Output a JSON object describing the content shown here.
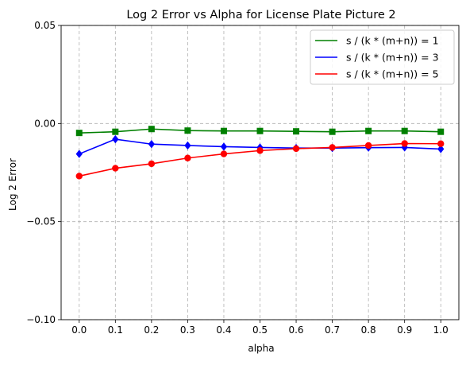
{
  "chart_data": {
    "type": "line",
    "title": "Log 2 Error vs Alpha for License Plate Picture 2",
    "xlabel": "alpha",
    "ylabel": "Log 2 Error",
    "x": [
      0.0,
      0.1,
      0.2,
      0.3,
      0.4,
      0.5,
      0.6,
      0.7,
      0.8,
      0.9,
      1.0
    ],
    "xticks": [
      "0.0",
      "0.1",
      "0.2",
      "0.3",
      "0.4",
      "0.5",
      "0.6",
      "0.7",
      "0.8",
      "0.9",
      "1.0"
    ],
    "yticks": [
      "0.05",
      "0.00",
      "−0.05",
      "−0.10"
    ],
    "ytick_values": [
      0.05,
      0.0,
      -0.05,
      -0.1
    ],
    "xlim": [
      -0.05,
      1.05
    ],
    "ylim": [
      -0.1,
      0.05
    ],
    "grid": true,
    "legend_position": "top-right",
    "series": [
      {
        "name": "s / (k * (m+n)) = 1",
        "color": "#008000",
        "marker": "square",
        "values": [
          -0.0048,
          -0.0042,
          -0.0028,
          -0.0036,
          -0.0038,
          -0.0038,
          -0.004,
          -0.0042,
          -0.0038,
          -0.0038,
          -0.0042
        ]
      },
      {
        "name": "s / (k * (m+n)) = 3",
        "color": "#0000ff",
        "marker": "diamond",
        "values": [
          -0.0155,
          -0.008,
          -0.0105,
          -0.0112,
          -0.0118,
          -0.0122,
          -0.0125,
          -0.0125,
          -0.0123,
          -0.0122,
          -0.013
        ]
      },
      {
        "name": "s / (k * (m+n)) = 5",
        "color": "#ff0000",
        "marker": "circle",
        "values": [
          -0.0268,
          -0.0228,
          -0.0205,
          -0.0176,
          -0.0155,
          -0.0138,
          -0.0128,
          -0.0122,
          -0.0112,
          -0.0102,
          -0.0103
        ]
      }
    ]
  }
}
